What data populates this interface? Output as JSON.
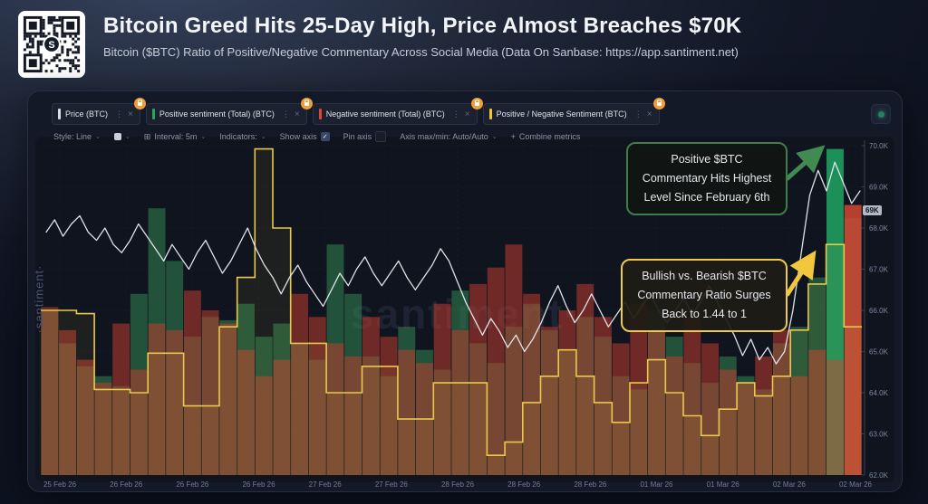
{
  "header": {
    "title": "Bitcoin Greed Hits 25-Day High, Price Almost Breaches $70K",
    "subtitle": "Bitcoin ($BTC) Ratio of Positive/Negative Commentary Across Social Media (Data On Sanbase: https://app.santiment.net)"
  },
  "tabs": [
    {
      "label": "Price (BTC)",
      "color": "#d8dce3"
    },
    {
      "label": "Positive sentiment (Total) (BTC)",
      "color": "#26a65b"
    },
    {
      "label": "Negative sentiment (Total) (BTC)",
      "color": "#e0443d"
    },
    {
      "label": "Positive / Negative Sentiment (BTC)",
      "color": "#f0c53a"
    }
  ],
  "toolbar": {
    "style_label": "Style: Line",
    "interval_label": "Interval: 5m",
    "indicators_label": "Indicators:",
    "show_axis_label": "Show axis",
    "pin_axis_label": "Pin axis",
    "axis_label": "Axis max/min: Auto/Auto",
    "combine_label": "Combine metrics"
  },
  "icons": {
    "chevron": "⌄",
    "dots": "⋮",
    "close": "×",
    "plus": "+",
    "check": "✓",
    "interval": "⊞"
  },
  "watermark": {
    "vertical": "·santiment·",
    "center": "santiment·"
  },
  "price_badge": "69K",
  "annotations": [
    {
      "lines": [
        "Positive $BTC",
        "Commentary Hits Highest",
        "Level Since February 6th"
      ],
      "accent": "#3f7d4c"
    },
    {
      "lines": [
        "Bullish vs. Bearish $BTC",
        "Commentary Ratio Surges",
        "Back to 1.44 to 1"
      ],
      "accent": "#eec94d"
    }
  ],
  "chart_data": {
    "type": "mixed: overlapping bars + step line + price line",
    "title": "BTC price vs positive/negative social sentiment",
    "y_axis": {
      "side": "right",
      "labels": [
        "70.0K",
        "69.0K",
        "68.0K",
        "67.0K",
        "66.0K",
        "65.0K",
        "64.0K",
        "63.0K",
        "62.0K"
      ],
      "range_kusd": [
        62,
        70
      ]
    },
    "x_axis": {
      "labels": [
        "25 Feb 26",
        "26 Feb 26",
        "26 Feb 26",
        "26 Feb 26",
        "27 Feb 26",
        "27 Feb 26",
        "28 Feb 26",
        "28 Feb 26",
        "28 Feb 26",
        "01 Mar 26",
        "01 Mar 26",
        "02 Mar 26",
        "02 Mar 26"
      ]
    },
    "grid": true,
    "legend_position": "top tabs",
    "series": [
      {
        "name": "Price (BTC)",
        "type": "line",
        "color": "#e9ecf2",
        "unit": "K USD",
        "values_kusd": [
          67.9,
          68.2,
          67.8,
          68.1,
          68.3,
          67.9,
          67.7,
          68.0,
          67.6,
          67.4,
          67.7,
          68.1,
          67.8,
          67.5,
          67.2,
          67.6,
          67.3,
          67.0,
          67.4,
          67.7,
          67.3,
          66.9,
          67.2,
          67.6,
          68.0,
          67.5,
          67.1,
          66.8,
          66.4,
          66.8,
          67.1,
          66.7,
          66.4,
          66.1,
          66.5,
          66.9,
          66.6,
          67.0,
          67.3,
          66.9,
          66.6,
          66.9,
          67.2,
          66.8,
          66.5,
          66.8,
          67.1,
          67.5,
          67.2,
          66.7,
          66.2,
          65.8,
          65.4,
          65.8,
          65.5,
          65.1,
          65.4,
          65.0,
          65.3,
          65.7,
          66.2,
          66.6,
          66.1,
          65.7,
          66.0,
          66.4,
          66.0,
          65.6,
          65.9,
          66.2,
          65.8,
          66.1,
          66.4,
          66.0,
          65.7,
          66.0,
          66.3,
          65.9,
          66.2,
          66.6,
          66.2,
          65.8,
          65.4,
          64.9,
          65.3,
          64.8,
          65.1,
          64.7,
          65.0,
          66.0,
          67.4,
          68.8,
          69.4,
          68.9,
          69.6,
          69.1,
          68.6,
          68.9
        ],
        "last_value_badge": "69K"
      },
      {
        "name": "Positive sentiment (Total) (BTC)",
        "type": "bar",
        "color": "#2ea05a",
        "values_norm": [
          0.5,
          0.4,
          0.33,
          0.3,
          0.27,
          0.55,
          0.81,
          0.65,
          0.42,
          0.48,
          0.47,
          0.52,
          0.42,
          0.46,
          0.4,
          0.35,
          0.7,
          0.55,
          0.36,
          0.3,
          0.45,
          0.38,
          0.32,
          0.56,
          0.4,
          0.34,
          0.45,
          0.52,
          0.44,
          0.38,
          0.48,
          0.42,
          0.3,
          0.26,
          0.5,
          0.42,
          0.34,
          0.28,
          0.36,
          0.3,
          0.26,
          0.4,
          0.45,
          0.6,
          0.99,
          0.78
        ],
        "note": "normalized bar heights; tallest bar = highest positive commentary since Feb 6"
      },
      {
        "name": "Negative sentiment (Total) (BTC)",
        "type": "bar",
        "color": "#cd4132",
        "values_norm": [
          0.51,
          0.44,
          0.35,
          0.28,
          0.46,
          0.32,
          0.46,
          0.44,
          0.56,
          0.5,
          0.46,
          0.38,
          0.3,
          0.35,
          0.55,
          0.48,
          0.4,
          0.36,
          0.48,
          0.42,
          0.38,
          0.34,
          0.52,
          0.44,
          0.58,
          0.63,
          0.7,
          0.55,
          0.45,
          0.5,
          0.58,
          0.48,
          0.4,
          0.52,
          0.44,
          0.36,
          0.48,
          0.4,
          0.32,
          0.28,
          0.36,
          0.44,
          0.3,
          0.38,
          0.35,
          0.82
        ]
      },
      {
        "name": "Positive / Negative Sentiment (BTC)",
        "type": "step",
        "color": "#e9c84a",
        "values_norm": [
          0.5,
          0.5,
          0.49,
          0.26,
          0.26,
          0.25,
          0.37,
          0.37,
          0.21,
          0.21,
          0.45,
          0.6,
          0.99,
          0.75,
          0.4,
          0.4,
          0.25,
          0.25,
          0.33,
          0.33,
          0.17,
          0.17,
          0.28,
          0.28,
          0.28,
          0.06,
          0.1,
          0.22,
          0.3,
          0.38,
          0.3,
          0.22,
          0.16,
          0.28,
          0.35,
          0.25,
          0.18,
          0.12,
          0.2,
          0.28,
          0.24,
          0.3,
          0.44,
          0.58,
          0.7,
          0.45
        ],
        "peak_ratio": "1.44 to 1"
      }
    ]
  }
}
